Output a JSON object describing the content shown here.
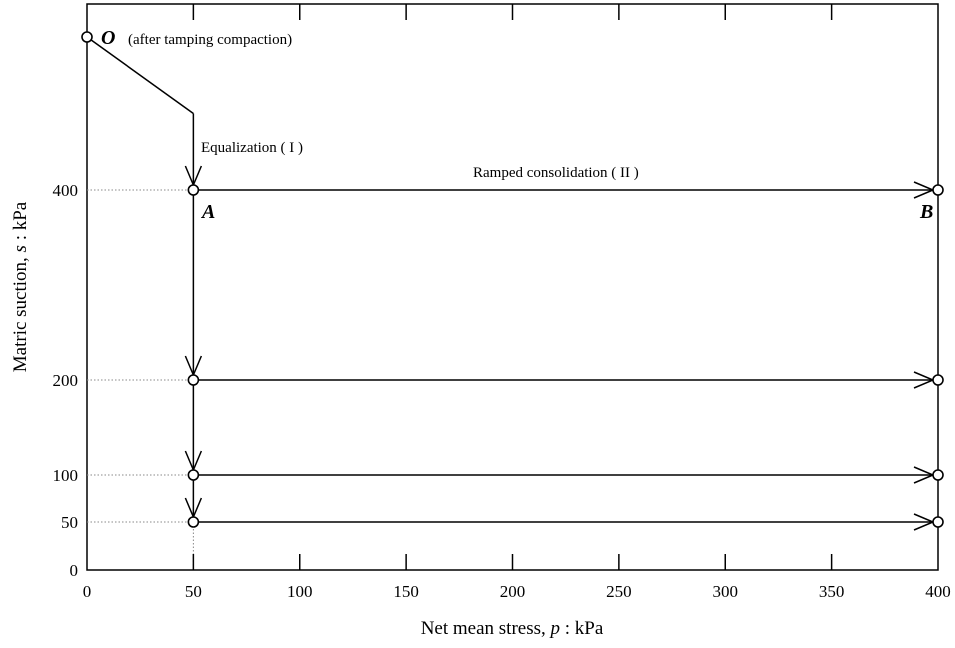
{
  "chart_data": {
    "type": "line",
    "title": "",
    "xlabel_parts": [
      "Net mean stress, ",
      "p",
      " : kPa"
    ],
    "ylabel_parts": [
      "Matric suction, ",
      "s",
      " : kPa"
    ],
    "xlim": [
      0,
      400
    ],
    "x_ticks": [
      0,
      50,
      100,
      150,
      200,
      250,
      300,
      350,
      400
    ],
    "x_tick_labels": [
      "0",
      "50",
      "100",
      "150",
      "200",
      "250",
      "300",
      "350",
      "400"
    ],
    "y_tick_values": [
      0,
      50,
      100,
      200,
      400
    ],
    "y_tick_labels": [
      "0",
      "50",
      "100",
      "200",
      "400"
    ],
    "grid": false,
    "points": [
      {
        "name": "O",
        "x": 0,
        "y": 560
      },
      {
        "name": "A",
        "x": 50,
        "y": 400
      },
      {
        "name": "B",
        "x": 400,
        "y": 400
      }
    ],
    "compaction_path": [
      {
        "x": 0,
        "y": 560
      },
      {
        "x": 50,
        "y": 480
      }
    ],
    "equalization_path": {
      "x": 50,
      "from": 480,
      "to": 400
    },
    "vertical_path": {
      "x": 50,
      "stops": [
        400,
        200,
        100,
        50
      ]
    },
    "ramped_paths": [
      {
        "suction": 400,
        "x_from": 50,
        "x_to": 400
      },
      {
        "suction": 200,
        "x_from": 50,
        "x_to": 400
      },
      {
        "suction": 100,
        "x_from": 50,
        "x_to": 400
      },
      {
        "suction": 50,
        "x_from": 50,
        "x_to": 400
      }
    ],
    "annotations": {
      "O_note": "(after tamping compaction)",
      "equalization": "Equalization ( I )",
      "ramped": "Ramped consolidation ( II )"
    },
    "colors": {
      "line": "#000000",
      "marker_fill": "#ffffff",
      "guide": "#888888"
    }
  }
}
